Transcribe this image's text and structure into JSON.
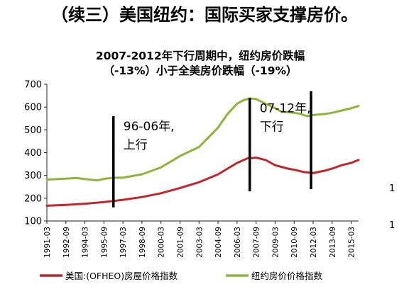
{
  "headline": "（续三）美国纽约：国际买家支撑房价。",
  "chart_data": {
    "type": "line",
    "title_lines": [
      "2007-2012年下行周期中，纽约房价跌幅",
      "（-13%）小于全美房价跌幅（-19%）"
    ],
    "ylim": [
      100,
      700
    ],
    "yticks": [
      100,
      200,
      300,
      400,
      500,
      600,
      700
    ],
    "x_tick_labels": [
      "1991-03",
      "1992-09",
      "1994-03",
      "1995-09",
      "1997-03",
      "1998-09",
      "2000-03",
      "2001-09",
      "2003-03",
      "2004-09",
      "2006-03",
      "2007-09",
      "2009-03",
      "2010-09",
      "2012-03",
      "2013-09",
      "2015-03"
    ],
    "xlim": [
      "1991-03",
      "2015-10"
    ],
    "grid": false,
    "legend_position": "bottom",
    "colors": {
      "us": "#c0272d",
      "ny": "#8fb43a",
      "marker": "#000000"
    },
    "series": [
      {
        "name": "美国:(OFHEO)房屋价格指数",
        "key": "us",
        "points": [
          [
            "1991-03",
            167
          ],
          [
            "1992-09",
            171
          ],
          [
            "1994-03",
            176
          ],
          [
            "1995-09",
            183
          ],
          [
            "1996-06",
            188
          ],
          [
            "1997-03",
            193
          ],
          [
            "1998-09",
            205
          ],
          [
            "2000-03",
            222
          ],
          [
            "2001-09",
            245
          ],
          [
            "2003-03",
            270
          ],
          [
            "2004-09",
            305
          ],
          [
            "2006-03",
            355
          ],
          [
            "2007-01",
            375
          ],
          [
            "2007-09",
            378
          ],
          [
            "2008-06",
            368
          ],
          [
            "2009-03",
            345
          ],
          [
            "2010-03",
            330
          ],
          [
            "2010-09",
            325
          ],
          [
            "2011-06",
            315
          ],
          [
            "2012-03",
            310
          ],
          [
            "2013-03",
            322
          ],
          [
            "2013-09",
            330
          ],
          [
            "2014-06",
            345
          ],
          [
            "2015-03",
            355
          ],
          [
            "2015-10",
            368
          ]
        ]
      },
      {
        "name": "纽约房价价格指数",
        "key": "ny",
        "points": [
          [
            "1991-03",
            282
          ],
          [
            "1992-09",
            286
          ],
          [
            "1993-06",
            289
          ],
          [
            "1994-03",
            284
          ],
          [
            "1995-03",
            278
          ],
          [
            "1995-09",
            285
          ],
          [
            "1996-06",
            290
          ],
          [
            "1997-03",
            290
          ],
          [
            "1998-09",
            305
          ],
          [
            "2000-03",
            335
          ],
          [
            "2001-09",
            385
          ],
          [
            "2003-03",
            425
          ],
          [
            "2004-09",
            510
          ],
          [
            "2005-06",
            570
          ],
          [
            "2006-03",
            615
          ],
          [
            "2006-09",
            630
          ],
          [
            "2007-03",
            638
          ],
          [
            "2007-09",
            635
          ],
          [
            "2008-06",
            615
          ],
          [
            "2009-03",
            595
          ],
          [
            "2009-09",
            580
          ],
          [
            "2010-09",
            575
          ],
          [
            "2011-03",
            570
          ],
          [
            "2011-09",
            560
          ],
          [
            "2012-03",
            565
          ],
          [
            "2013-03",
            570
          ],
          [
            "2013-09",
            575
          ],
          [
            "2014-06",
            585
          ],
          [
            "2015-03",
            595
          ],
          [
            "2015-10",
            605
          ]
        ]
      }
    ],
    "markers": [
      {
        "label_lines": [
          "96-06年,",
          "上行"
        ],
        "x": "1996-06",
        "y_from": 160,
        "y_to": 560
      },
      {
        "label_lines": [
          "07-12年,",
          "下行"
        ],
        "x": "2007-03",
        "y_from": 230,
        "y_to": 640
      },
      {
        "label_lines": [],
        "x": "2012-01",
        "y_from": 240,
        "y_to": 670
      }
    ]
  },
  "side_marks": [
    "1",
    "1"
  ]
}
